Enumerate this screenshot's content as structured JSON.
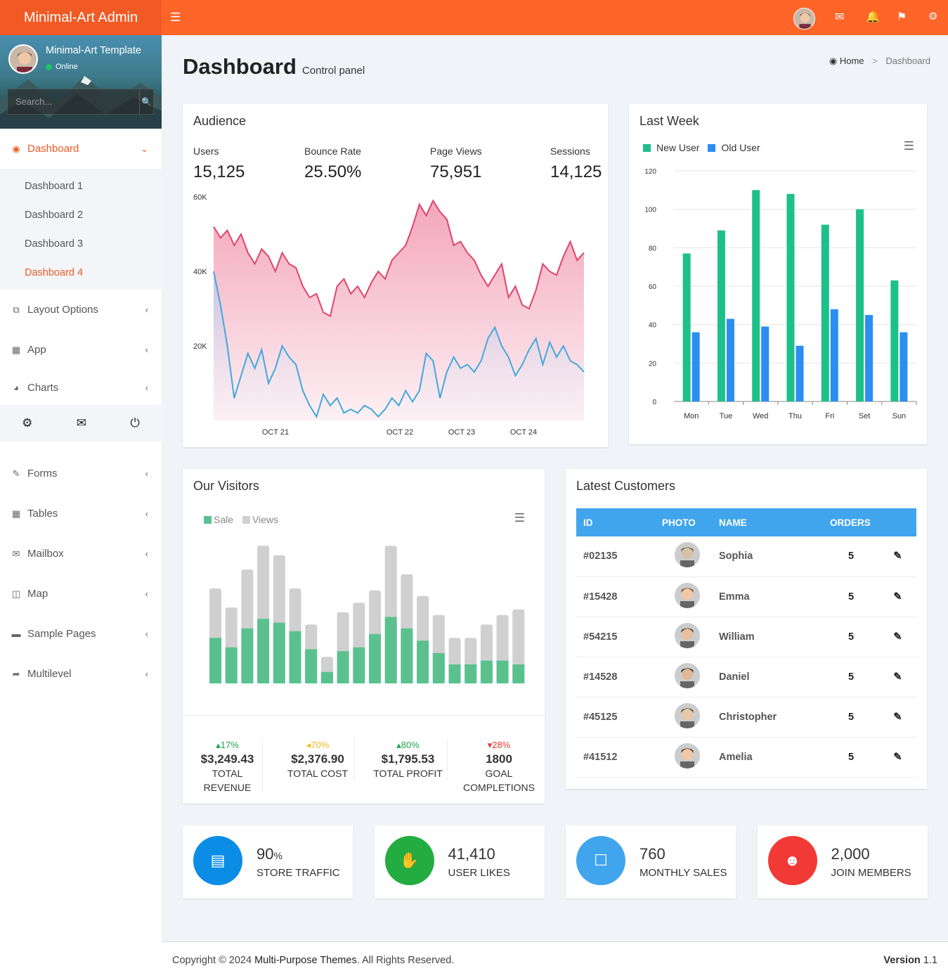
{
  "brand": {
    "title": "Minimal-Art Admin"
  },
  "user": {
    "name": "Minimal-Art Template",
    "status": "Online"
  },
  "search": {
    "placeholder": "Search..."
  },
  "menu": {
    "dashboard": "Dashboard",
    "sub": [
      "Dashboard 1",
      "Dashboard 2",
      "Dashboard 3",
      "Dashboard 4"
    ],
    "items": [
      "Layout Options",
      "App",
      "Charts"
    ],
    "items2": [
      "Forms",
      "Tables",
      "Mailbox",
      "Map",
      "Sample Pages",
      "Multilevel"
    ]
  },
  "page": {
    "title": "Dashboard",
    "subtitle": "Control panel"
  },
  "breadcrumb": {
    "home": "Home",
    "current": "Dashboard"
  },
  "audience": {
    "title": "Audience",
    "stats": [
      {
        "label": "Users",
        "value": "15,125"
      },
      {
        "label": "Bounce Rate",
        "value": "25.50%"
      },
      {
        "label": "Page Views",
        "value": "75,951"
      },
      {
        "label": "Sessions",
        "value": "14,125"
      }
    ],
    "yticks": [
      "60K",
      "40K",
      "20K"
    ],
    "xticks": [
      "OCT 21",
      "OCT 22",
      "OCT 23",
      "OCT 24"
    ]
  },
  "lastweek": {
    "title": "Last Week",
    "legend": [
      "New User",
      "Old User"
    ]
  },
  "visitors": {
    "title": "Our Visitors",
    "legend": [
      "Sale",
      "Views"
    ],
    "summary": [
      {
        "pct": "17%",
        "value": "$3,249.43",
        "label": "TOTAL REVENUE",
        "trend": "up",
        "color": "#1fa34a"
      },
      {
        "pct": "70%",
        "value": "$2,376.90",
        "label": "TOTAL COST",
        "trend": "left",
        "color": "#f5b71c"
      },
      {
        "pct": "80%",
        "value": "$1,795.53",
        "label": "TOTAL PROFIT",
        "trend": "up",
        "color": "#1fa34a"
      },
      {
        "pct": "28%",
        "value": "1800",
        "label": "GOAL COMPLETIONS",
        "trend": "down",
        "color": "#e53935"
      }
    ]
  },
  "customers": {
    "title": "Latest Customers",
    "headers": [
      "ID",
      "PHOTO",
      "NAME",
      "ORDERS"
    ],
    "rows": [
      {
        "id": "#02135",
        "name": "Sophia",
        "orders": "5"
      },
      {
        "id": "#15428",
        "name": "Emma",
        "orders": "5"
      },
      {
        "id": "#54215",
        "name": "William",
        "orders": "5"
      },
      {
        "id": "#14528",
        "name": "Daniel",
        "orders": "5"
      },
      {
        "id": "#45125",
        "name": "Christopher",
        "orders": "5"
      },
      {
        "id": "#41512",
        "name": "Amelia",
        "orders": "5"
      }
    ]
  },
  "infoboxes": [
    {
      "num": "90",
      "unit": "%",
      "label": "STORE TRAFFIC",
      "color": "#0b8de6",
      "icon": "bar-chart-icon"
    },
    {
      "num": "41,410",
      "unit": "",
      "label": "USER LIKES",
      "color": "#23ac3f",
      "icon": "thumbs-up-icon"
    },
    {
      "num": "760",
      "unit": "",
      "label": "MONTHLY SALES",
      "color": "#41a5ed",
      "icon": "shopping-bag-icon"
    },
    {
      "num": "2,000",
      "unit": "",
      "label": "JOIN MEMBERS",
      "color": "#f13a35",
      "icon": "users-icon"
    }
  ],
  "footer": {
    "prefix": "Copyright © 2024 ",
    "link": "Multi-Purpose Themes",
    "suffix": ". All Rights Reserved.",
    "version_label": "Version",
    "version": "1.1"
  },
  "chart_data": [
    {
      "type": "area",
      "title": "Audience",
      "ylim": [
        0,
        60000
      ],
      "yticks": [
        20000,
        40000,
        60000
      ],
      "series": [
        {
          "values": [
            52000,
            49000,
            51000,
            47000,
            50000,
            45000,
            42000,
            46000,
            44000,
            40000,
            45000,
            42000,
            41000,
            36000,
            33000,
            34000,
            29000,
            28000,
            36000,
            38000,
            34000,
            36000,
            33000,
            37000,
            40000,
            38000,
            43000,
            45000,
            47000,
            52000,
            58000,
            55000,
            59000,
            56000,
            54000,
            47000,
            48000,
            45000,
            43000,
            39000,
            36000,
            39000,
            42000,
            33000,
            36000,
            31000,
            30000,
            35000,
            42000,
            40000,
            39000,
            44000,
            48000,
            43000,
            45000
          ]
        },
        {
          "values": [
            40000,
            31000,
            20000,
            6000,
            12000,
            18000,
            14000,
            19000,
            10000,
            14000,
            20000,
            17000,
            15000,
            8000,
            4000,
            1000,
            7000,
            4000,
            6000,
            2000,
            3000,
            2000,
            4000,
            3000,
            1000,
            3000,
            6000,
            4000,
            8000,
            5000,
            8000,
            18000,
            16000,
            6000,
            13000,
            17000,
            14000,
            15000,
            13000,
            16000,
            22000,
            25000,
            20000,
            17000,
            12000,
            15000,
            19000,
            22000,
            15000,
            21000,
            17000,
            20000,
            16000,
            15000,
            13000
          ]
        }
      ],
      "x_ticks": [
        "OCT 21",
        "OCT 22",
        "OCT 23",
        "OCT 24"
      ]
    },
    {
      "type": "bar",
      "title": "Last Week",
      "categories": [
        "Mon",
        "Tue",
        "Wed",
        "Thu",
        "Fri",
        "Set",
        "Sun"
      ],
      "ylim": [
        0,
        120
      ],
      "series": [
        {
          "name": "New User",
          "values": [
            77,
            89,
            110,
            108,
            92,
            100,
            63
          ],
          "color": "#1ec08a"
        },
        {
          "name": "Old User",
          "values": [
            36,
            43,
            39,
            29,
            48,
            45,
            36
          ],
          "color": "#2b8ef0"
        }
      ]
    },
    {
      "type": "bar",
      "title": "Our Visitors",
      "series": [
        {
          "name": "Sale",
          "values": [
            48,
            38,
            58,
            68,
            64,
            55,
            36,
            12,
            34,
            38,
            52,
            70,
            58,
            45,
            32,
            20,
            20,
            24,
            24,
            20
          ],
          "color": "#5ac18e"
        },
        {
          "name": "Views",
          "values": [
            100,
            80,
            120,
            145,
            135,
            100,
            62,
            28,
            75,
            85,
            98,
            145,
            115,
            92,
            72,
            48,
            48,
            62,
            72,
            78
          ],
          "color": "#d0d0d0"
        }
      ]
    }
  ]
}
